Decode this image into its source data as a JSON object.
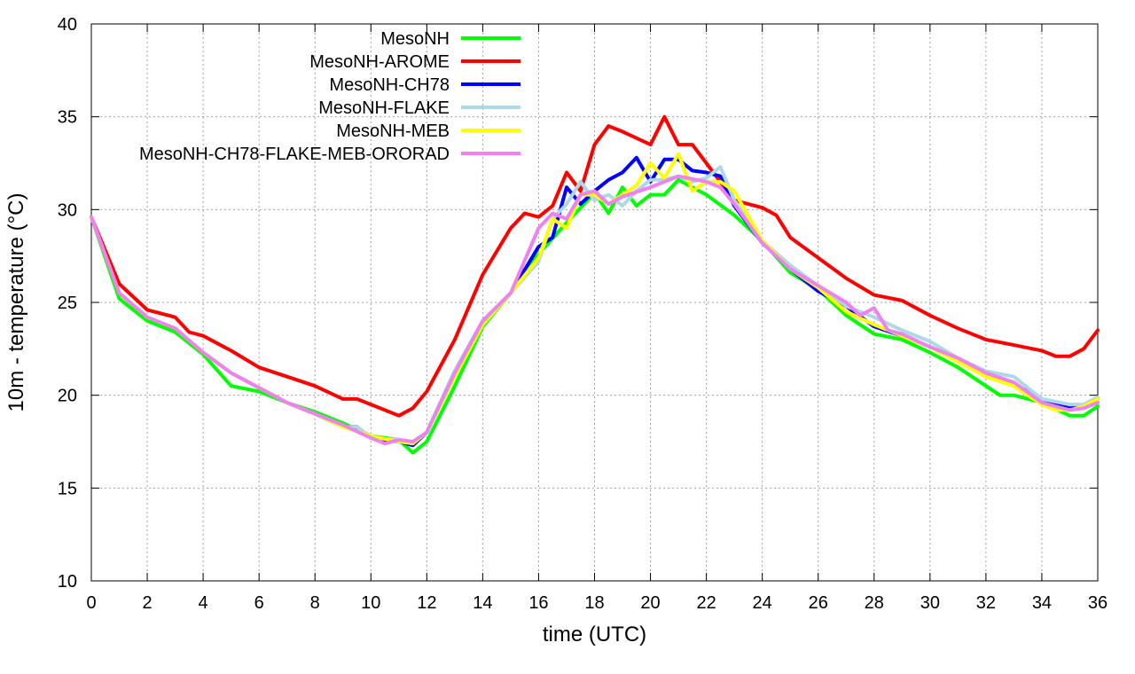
{
  "chart_data": {
    "type": "line",
    "xlabel": "time (UTC)",
    "ylabel": "10m - temperature (°C)",
    "xlim": [
      0,
      36
    ],
    "ylim": [
      10,
      40
    ],
    "xticks": [
      0,
      2,
      4,
      6,
      8,
      10,
      12,
      14,
      16,
      18,
      20,
      22,
      24,
      26,
      28,
      30,
      32,
      34,
      36
    ],
    "yticks": [
      10,
      15,
      20,
      25,
      30,
      35,
      40
    ],
    "grid": true,
    "legend_position": "top-left",
    "series": [
      {
        "name": "MesoNH",
        "color": "#00ff00",
        "points": [
          [
            0,
            29.6
          ],
          [
            1,
            25.2
          ],
          [
            2,
            24.0
          ],
          [
            3,
            23.4
          ],
          [
            4,
            22.2
          ],
          [
            5,
            20.5
          ],
          [
            6,
            20.2
          ],
          [
            7,
            19.6
          ],
          [
            8,
            19.1
          ],
          [
            9,
            18.5
          ],
          [
            10,
            17.8
          ],
          [
            11,
            17.6
          ],
          [
            11.5,
            16.9
          ],
          [
            12,
            17.5
          ],
          [
            13,
            20.5
          ],
          [
            14,
            23.7
          ],
          [
            15,
            25.5
          ],
          [
            16,
            27.6
          ],
          [
            17,
            29.3
          ],
          [
            18,
            30.9
          ],
          [
            18.5,
            29.8
          ],
          [
            19,
            31.2
          ],
          [
            19.5,
            30.2
          ],
          [
            20,
            30.8
          ],
          [
            20.5,
            30.8
          ],
          [
            21,
            31.6
          ],
          [
            22,
            30.8
          ],
          [
            23,
            29.7
          ],
          [
            24,
            28.3
          ],
          [
            25,
            26.6
          ],
          [
            26,
            25.7
          ],
          [
            27,
            24.3
          ],
          [
            28,
            23.3
          ],
          [
            29,
            23.0
          ],
          [
            30,
            22.3
          ],
          [
            31,
            21.5
          ],
          [
            32,
            20.5
          ],
          [
            32.5,
            20.0
          ],
          [
            33,
            20.0
          ],
          [
            34,
            19.6
          ],
          [
            35,
            18.9
          ],
          [
            35.5,
            18.9
          ],
          [
            36,
            19.4
          ]
        ]
      },
      {
        "name": "MesoNH-AROME",
        "color": "#ff0000",
        "points": [
          [
            0,
            29.6
          ],
          [
            1,
            26.0
          ],
          [
            2,
            24.6
          ],
          [
            3,
            24.2
          ],
          [
            3.5,
            23.4
          ],
          [
            4,
            23.2
          ],
          [
            5,
            22.4
          ],
          [
            6,
            21.5
          ],
          [
            7,
            21.0
          ],
          [
            8,
            20.5
          ],
          [
            9,
            19.8
          ],
          [
            9.5,
            19.8
          ],
          [
            10,
            19.5
          ],
          [
            11,
            18.9
          ],
          [
            11.5,
            19.3
          ],
          [
            12,
            20.2
          ],
          [
            13,
            23.0
          ],
          [
            14,
            26.5
          ],
          [
            15,
            29.0
          ],
          [
            15.5,
            29.8
          ],
          [
            16,
            29.6
          ],
          [
            16.5,
            30.2
          ],
          [
            17,
            32.0
          ],
          [
            17.5,
            31.0
          ],
          [
            18,
            33.5
          ],
          [
            18.5,
            34.5
          ],
          [
            19,
            34.2
          ],
          [
            20,
            33.5
          ],
          [
            20.5,
            35.0
          ],
          [
            21,
            33.5
          ],
          [
            21.5,
            33.5
          ],
          [
            22,
            32.5
          ],
          [
            23,
            30.5
          ],
          [
            24,
            30.1
          ],
          [
            24.5,
            29.7
          ],
          [
            25,
            28.5
          ],
          [
            26,
            27.4
          ],
          [
            27,
            26.3
          ],
          [
            28,
            25.4
          ],
          [
            29,
            25.1
          ],
          [
            30,
            24.3
          ],
          [
            31,
            23.6
          ],
          [
            32,
            23.0
          ],
          [
            33,
            22.7
          ],
          [
            34,
            22.4
          ],
          [
            34.5,
            22.1
          ],
          [
            35,
            22.1
          ],
          [
            35.5,
            22.5
          ],
          [
            36,
            23.5
          ]
        ]
      },
      {
        "name": "MesoNH-CH78",
        "color": "#0000ff",
        "points": [
          [
            0,
            29.6
          ],
          [
            1,
            25.5
          ],
          [
            2,
            24.2
          ],
          [
            3,
            23.6
          ],
          [
            4,
            22.3
          ],
          [
            5,
            21.2
          ],
          [
            6,
            20.4
          ],
          [
            7,
            19.6
          ],
          [
            8,
            19.0
          ],
          [
            9,
            18.3
          ],
          [
            9.5,
            18.3
          ],
          [
            10,
            17.7
          ],
          [
            11,
            17.5
          ],
          [
            11.5,
            17.3
          ],
          [
            12,
            18.0
          ],
          [
            13,
            21.3
          ],
          [
            14,
            24.0
          ],
          [
            15,
            25.5
          ],
          [
            16,
            28.0
          ],
          [
            16.5,
            28.5
          ],
          [
            17,
            31.2
          ],
          [
            17.5,
            30.3
          ],
          [
            18,
            31.0
          ],
          [
            18.5,
            31.6
          ],
          [
            19,
            32.0
          ],
          [
            19.5,
            32.8
          ],
          [
            20,
            31.5
          ],
          [
            20.5,
            32.7
          ],
          [
            21,
            32.7
          ],
          [
            21.5,
            32.1
          ],
          [
            22,
            32.0
          ],
          [
            22.5,
            31.8
          ],
          [
            23,
            30.2
          ],
          [
            24,
            28.2
          ],
          [
            25,
            26.8
          ],
          [
            26,
            25.6
          ],
          [
            27,
            24.8
          ],
          [
            28,
            23.7
          ],
          [
            29,
            23.2
          ],
          [
            30,
            22.6
          ],
          [
            31,
            21.9
          ],
          [
            32,
            21.1
          ],
          [
            33,
            20.6
          ],
          [
            34,
            19.8
          ],
          [
            35,
            19.3
          ],
          [
            35.5,
            19.4
          ],
          [
            36,
            19.8
          ]
        ]
      },
      {
        "name": "MesoNH-FLAKE",
        "color": "#add8e6",
        "points": [
          [
            0,
            29.6
          ],
          [
            1,
            25.5
          ],
          [
            2,
            24.2
          ],
          [
            3,
            23.6
          ],
          [
            4,
            22.3
          ],
          [
            5,
            21.2
          ],
          [
            6,
            20.4
          ],
          [
            7,
            19.6
          ],
          [
            8,
            19.0
          ],
          [
            9,
            18.3
          ],
          [
            9.5,
            18.3
          ],
          [
            10,
            17.7
          ],
          [
            11,
            17.6
          ],
          [
            11.5,
            17.4
          ],
          [
            12,
            18.0
          ],
          [
            13,
            21.3
          ],
          [
            14,
            24.0
          ],
          [
            15,
            25.5
          ],
          [
            16,
            27.2
          ],
          [
            16.5,
            29.5
          ],
          [
            17,
            30.3
          ],
          [
            17.5,
            31.5
          ],
          [
            18,
            30.5
          ],
          [
            18.5,
            30.8
          ],
          [
            19,
            30.2
          ],
          [
            19.5,
            31.0
          ],
          [
            20,
            31.6
          ],
          [
            20.5,
            31.6
          ],
          [
            21,
            31.8
          ],
          [
            21.5,
            31.5
          ],
          [
            22,
            31.7
          ],
          [
            22.5,
            32.3
          ],
          [
            23,
            30.5
          ],
          [
            24,
            28.3
          ],
          [
            25,
            27.0
          ],
          [
            26,
            25.9
          ],
          [
            27,
            24.8
          ],
          [
            28,
            24.2
          ],
          [
            29,
            23.5
          ],
          [
            30,
            22.9
          ],
          [
            31,
            22.0
          ],
          [
            32,
            21.3
          ],
          [
            33,
            21.0
          ],
          [
            34,
            19.8
          ],
          [
            35,
            19.5
          ],
          [
            35.5,
            19.5
          ],
          [
            36,
            19.9
          ]
        ]
      },
      {
        "name": "MesoNH-MEB",
        "color": "#ffff00",
        "points": [
          [
            0,
            29.6
          ],
          [
            1,
            25.5
          ],
          [
            2,
            24.2
          ],
          [
            3,
            23.6
          ],
          [
            4,
            22.3
          ],
          [
            5,
            21.2
          ],
          [
            6,
            20.4
          ],
          [
            7,
            19.6
          ],
          [
            8,
            19.0
          ],
          [
            9,
            18.3
          ],
          [
            10,
            17.8
          ],
          [
            11,
            17.5
          ],
          [
            11.5,
            17.4
          ],
          [
            12,
            18.0
          ],
          [
            13,
            21.0
          ],
          [
            14,
            23.8
          ],
          [
            15,
            25.5
          ],
          [
            16,
            27.4
          ],
          [
            16.5,
            29.5
          ],
          [
            17,
            29.0
          ],
          [
            17.5,
            30.8
          ],
          [
            18,
            30.8
          ],
          [
            18.5,
            30.3
          ],
          [
            19,
            30.8
          ],
          [
            19.5,
            31.3
          ],
          [
            20,
            32.5
          ],
          [
            20.5,
            31.7
          ],
          [
            21,
            33.0
          ],
          [
            21.5,
            31.0
          ],
          [
            22,
            31.5
          ],
          [
            22.5,
            31.5
          ],
          [
            23,
            31.0
          ],
          [
            24,
            28.3
          ],
          [
            25,
            26.8
          ],
          [
            26,
            25.8
          ],
          [
            27,
            24.5
          ],
          [
            28,
            23.8
          ],
          [
            29,
            23.2
          ],
          [
            30,
            22.6
          ],
          [
            31,
            21.8
          ],
          [
            32,
            21.0
          ],
          [
            33,
            20.5
          ],
          [
            34,
            19.5
          ],
          [
            34.5,
            19.2
          ],
          [
            35,
            19.2
          ],
          [
            35.5,
            19.4
          ],
          [
            36,
            19.8
          ]
        ]
      },
      {
        "name": "MesoNH-CH78-FLAKE-MEB-ORORAD",
        "color": "#ee82ee",
        "points": [
          [
            0,
            29.6
          ],
          [
            1,
            25.5
          ],
          [
            2,
            24.2
          ],
          [
            3,
            23.6
          ],
          [
            4,
            22.3
          ],
          [
            5,
            21.2
          ],
          [
            6,
            20.4
          ],
          [
            7,
            19.6
          ],
          [
            8,
            19.0
          ],
          [
            9,
            18.4
          ],
          [
            10,
            17.7
          ],
          [
            10.5,
            17.4
          ],
          [
            11,
            17.6
          ],
          [
            11.5,
            17.5
          ],
          [
            12,
            18.0
          ],
          [
            13,
            21.2
          ],
          [
            14,
            24.0
          ],
          [
            15,
            25.5
          ],
          [
            16,
            29.0
          ],
          [
            16.5,
            29.8
          ],
          [
            17,
            29.5
          ],
          [
            17.5,
            30.8
          ],
          [
            18,
            31.0
          ],
          [
            18.5,
            30.3
          ],
          [
            19,
            30.7
          ],
          [
            20,
            31.2
          ],
          [
            20.5,
            31.5
          ],
          [
            21,
            31.8
          ],
          [
            22,
            31.5
          ],
          [
            22.5,
            31.2
          ],
          [
            23,
            30.3
          ],
          [
            24,
            28.2
          ],
          [
            25,
            26.8
          ],
          [
            26,
            25.9
          ],
          [
            27,
            25.0
          ],
          [
            27.5,
            24.3
          ],
          [
            28,
            24.7
          ],
          [
            28.5,
            23.5
          ],
          [
            29,
            23.3
          ],
          [
            30,
            22.6
          ],
          [
            31,
            22.0
          ],
          [
            32,
            21.2
          ],
          [
            33,
            20.7
          ],
          [
            34,
            19.6
          ],
          [
            35,
            19.2
          ],
          [
            35.5,
            19.3
          ],
          [
            36,
            19.6
          ]
        ]
      }
    ]
  }
}
